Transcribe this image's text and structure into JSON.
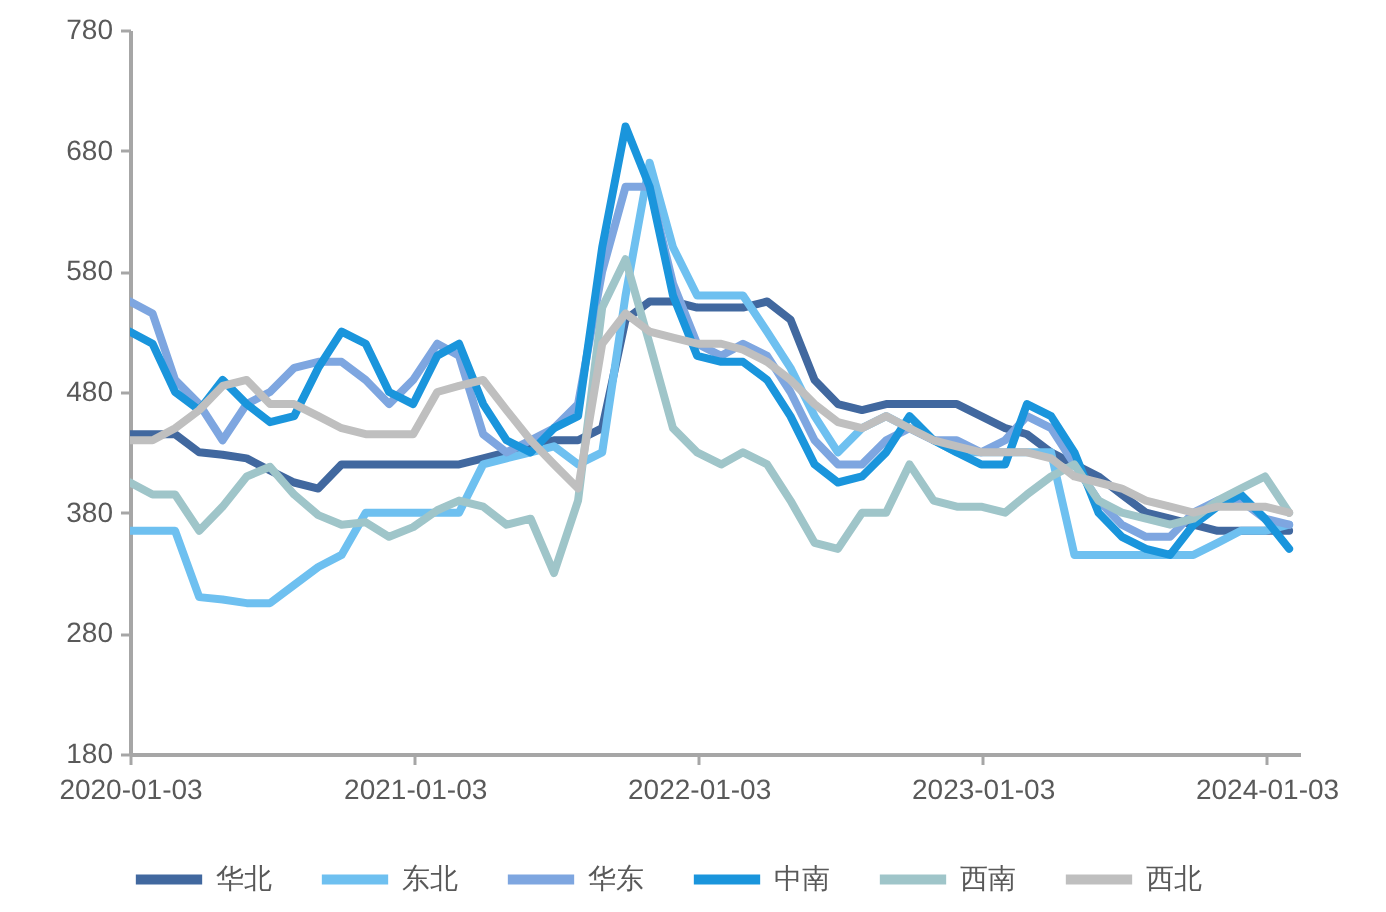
{
  "chart_data": {
    "type": "line",
    "x": [
      "2020-01-03",
      "2020-02",
      "2020-03",
      "2020-04",
      "2020-05",
      "2020-06",
      "2020-07",
      "2020-08",
      "2020-09",
      "2020-10",
      "2020-11",
      "2020-12",
      "2021-01",
      "2021-02",
      "2021-03",
      "2021-04",
      "2021-05",
      "2021-06",
      "2021-07",
      "2021-08",
      "2021-09",
      "2021-10",
      "2021-11",
      "2021-12",
      "2022-01",
      "2022-02",
      "2022-03",
      "2022-04",
      "2022-05",
      "2022-06",
      "2022-07",
      "2022-08",
      "2022-09",
      "2022-10",
      "2022-11",
      "2022-12",
      "2023-01",
      "2023-02",
      "2023-03",
      "2023-04",
      "2023-05",
      "2023-06",
      "2023-07",
      "2023-08",
      "2023-09",
      "2023-10",
      "2023-11",
      "2023-12",
      "2024-01",
      "2024-02"
    ],
    "series": [
      {
        "name": "华北",
        "color": "#41689f",
        "values": [
          445,
          445,
          445,
          430,
          428,
          425,
          415,
          405,
          400,
          420,
          420,
          420,
          420,
          420,
          420,
          425,
          430,
          435,
          440,
          440,
          450,
          540,
          555,
          555,
          550,
          550,
          550,
          555,
          540,
          490,
          470,
          465,
          470,
          470,
          470,
          470,
          460,
          450,
          445,
          430,
          420,
          410,
          395,
          380,
          375,
          370,
          365,
          365,
          365,
          365
        ]
      },
      {
        "name": "东北",
        "color": "#6ec0f0",
        "values": [
          365,
          365,
          365,
          310,
          308,
          305,
          305,
          320,
          335,
          345,
          380,
          380,
          380,
          380,
          380,
          420,
          425,
          430,
          435,
          420,
          430,
          560,
          670,
          600,
          560,
          560,
          560,
          530,
          500,
          460,
          430,
          450,
          460,
          450,
          440,
          430,
          430,
          430,
          430,
          430,
          345,
          345,
          345,
          345,
          345,
          345,
          355,
          365,
          365,
          370
        ]
      },
      {
        "name": "华东",
        "color": "#7ea6e0",
        "values": [
          555,
          545,
          490,
          470,
          440,
          470,
          480,
          500,
          505,
          505,
          490,
          470,
          490,
          520,
          510,
          445,
          430,
          440,
          450,
          470,
          580,
          650,
          650,
          570,
          520,
          510,
          520,
          510,
          480,
          440,
          420,
          420,
          440,
          450,
          440,
          440,
          430,
          440,
          460,
          450,
          420,
          390,
          370,
          360,
          360,
          380,
          390,
          390,
          375,
          370
        ]
      },
      {
        "name": "中南",
        "color": "#1a95dc",
        "values": [
          530,
          520,
          480,
          465,
          490,
          470,
          455,
          460,
          500,
          530,
          520,
          480,
          470,
          510,
          520,
          470,
          440,
          430,
          450,
          460,
          600,
          700,
          650,
          560,
          510,
          505,
          505,
          490,
          460,
          420,
          405,
          410,
          430,
          460,
          440,
          430,
          420,
          420,
          470,
          460,
          430,
          380,
          360,
          350,
          345,
          370,
          385,
          395,
          375,
          350
        ]
      },
      {
        "name": "西南",
        "color": "#9fc5c9",
        "values": [
          405,
          395,
          395,
          365,
          385,
          410,
          418,
          395,
          378,
          370,
          372,
          360,
          368,
          382,
          390,
          385,
          370,
          375,
          330,
          390,
          550,
          590,
          520,
          450,
          430,
          420,
          430,
          420,
          390,
          355,
          350,
          380,
          380,
          420,
          390,
          385,
          385,
          380,
          395,
          410,
          420,
          390,
          380,
          375,
          370,
          375,
          390,
          400,
          410,
          380
        ]
      },
      {
        "name": "西北",
        "color": "#bfbfbf",
        "values": [
          440,
          440,
          450,
          465,
          485,
          490,
          470,
          470,
          460,
          450,
          445,
          445,
          445,
          480,
          485,
          490,
          465,
          440,
          420,
          400,
          520,
          545,
          530,
          525,
          520,
          520,
          515,
          505,
          490,
          470,
          455,
          450,
          460,
          450,
          440,
          435,
          430,
          430,
          430,
          425,
          410,
          405,
          400,
          390,
          385,
          380,
          385,
          385,
          385,
          380
        ]
      }
    ],
    "xlim": [
      "2020-01-03",
      "2024-02-15"
    ],
    "xticks": [
      "2020-01-03",
      "2021-01-03",
      "2022-01-03",
      "2023-01-03",
      "2024-01-03"
    ],
    "ylim": [
      180,
      780
    ],
    "yticks": [
      180,
      280,
      380,
      480,
      580,
      680,
      780
    ],
    "legend": "bottom",
    "line_style": "solid"
  }
}
